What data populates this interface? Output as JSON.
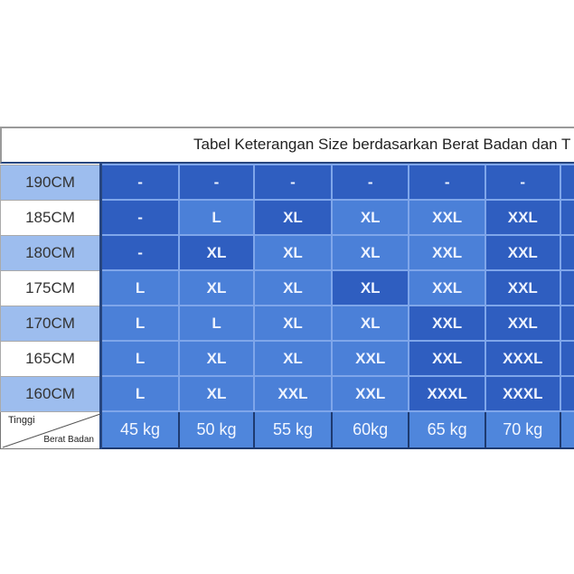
{
  "title": "Tabel Keterangan Size berdasarkan Berat Badan dan T",
  "corner": {
    "top_label": "Tinggi",
    "bottom_label": "Berat Badan"
  },
  "weights": [
    "45 kg",
    "50 kg",
    "55 kg",
    "60kg",
    "65 kg",
    "70 kg"
  ],
  "rows": [
    {
      "height": "190CM",
      "sizes": [
        "-",
        "-",
        "-",
        "-",
        "-",
        "-"
      ]
    },
    {
      "height": "185CM",
      "sizes": [
        "-",
        "L",
        "XL",
        "XL",
        "XXL",
        "XXL"
      ]
    },
    {
      "height": "180CM",
      "sizes": [
        "-",
        "XL",
        "XL",
        "XL",
        "XXL",
        "XXL"
      ]
    },
    {
      "height": "175CM",
      "sizes": [
        "L",
        "XL",
        "XL",
        "XL",
        "XXL",
        "XXL"
      ]
    },
    {
      "height": "170CM",
      "sizes": [
        "L",
        "L",
        "XL",
        "XL",
        "XXL",
        "XXL"
      ]
    },
    {
      "height": "165CM",
      "sizes": [
        "L",
        "XL",
        "XL",
        "XXL",
        "XXL",
        "XXXL"
      ]
    },
    {
      "height": "160CM",
      "sizes": [
        "L",
        "XL",
        "XXL",
        "XXL",
        "XXXL",
        "XXXL"
      ]
    }
  ],
  "colors": {
    "dark_cell": "#2f5ec0",
    "light_cell": "#4b80d8",
    "header_alt": "#9dbdee"
  }
}
